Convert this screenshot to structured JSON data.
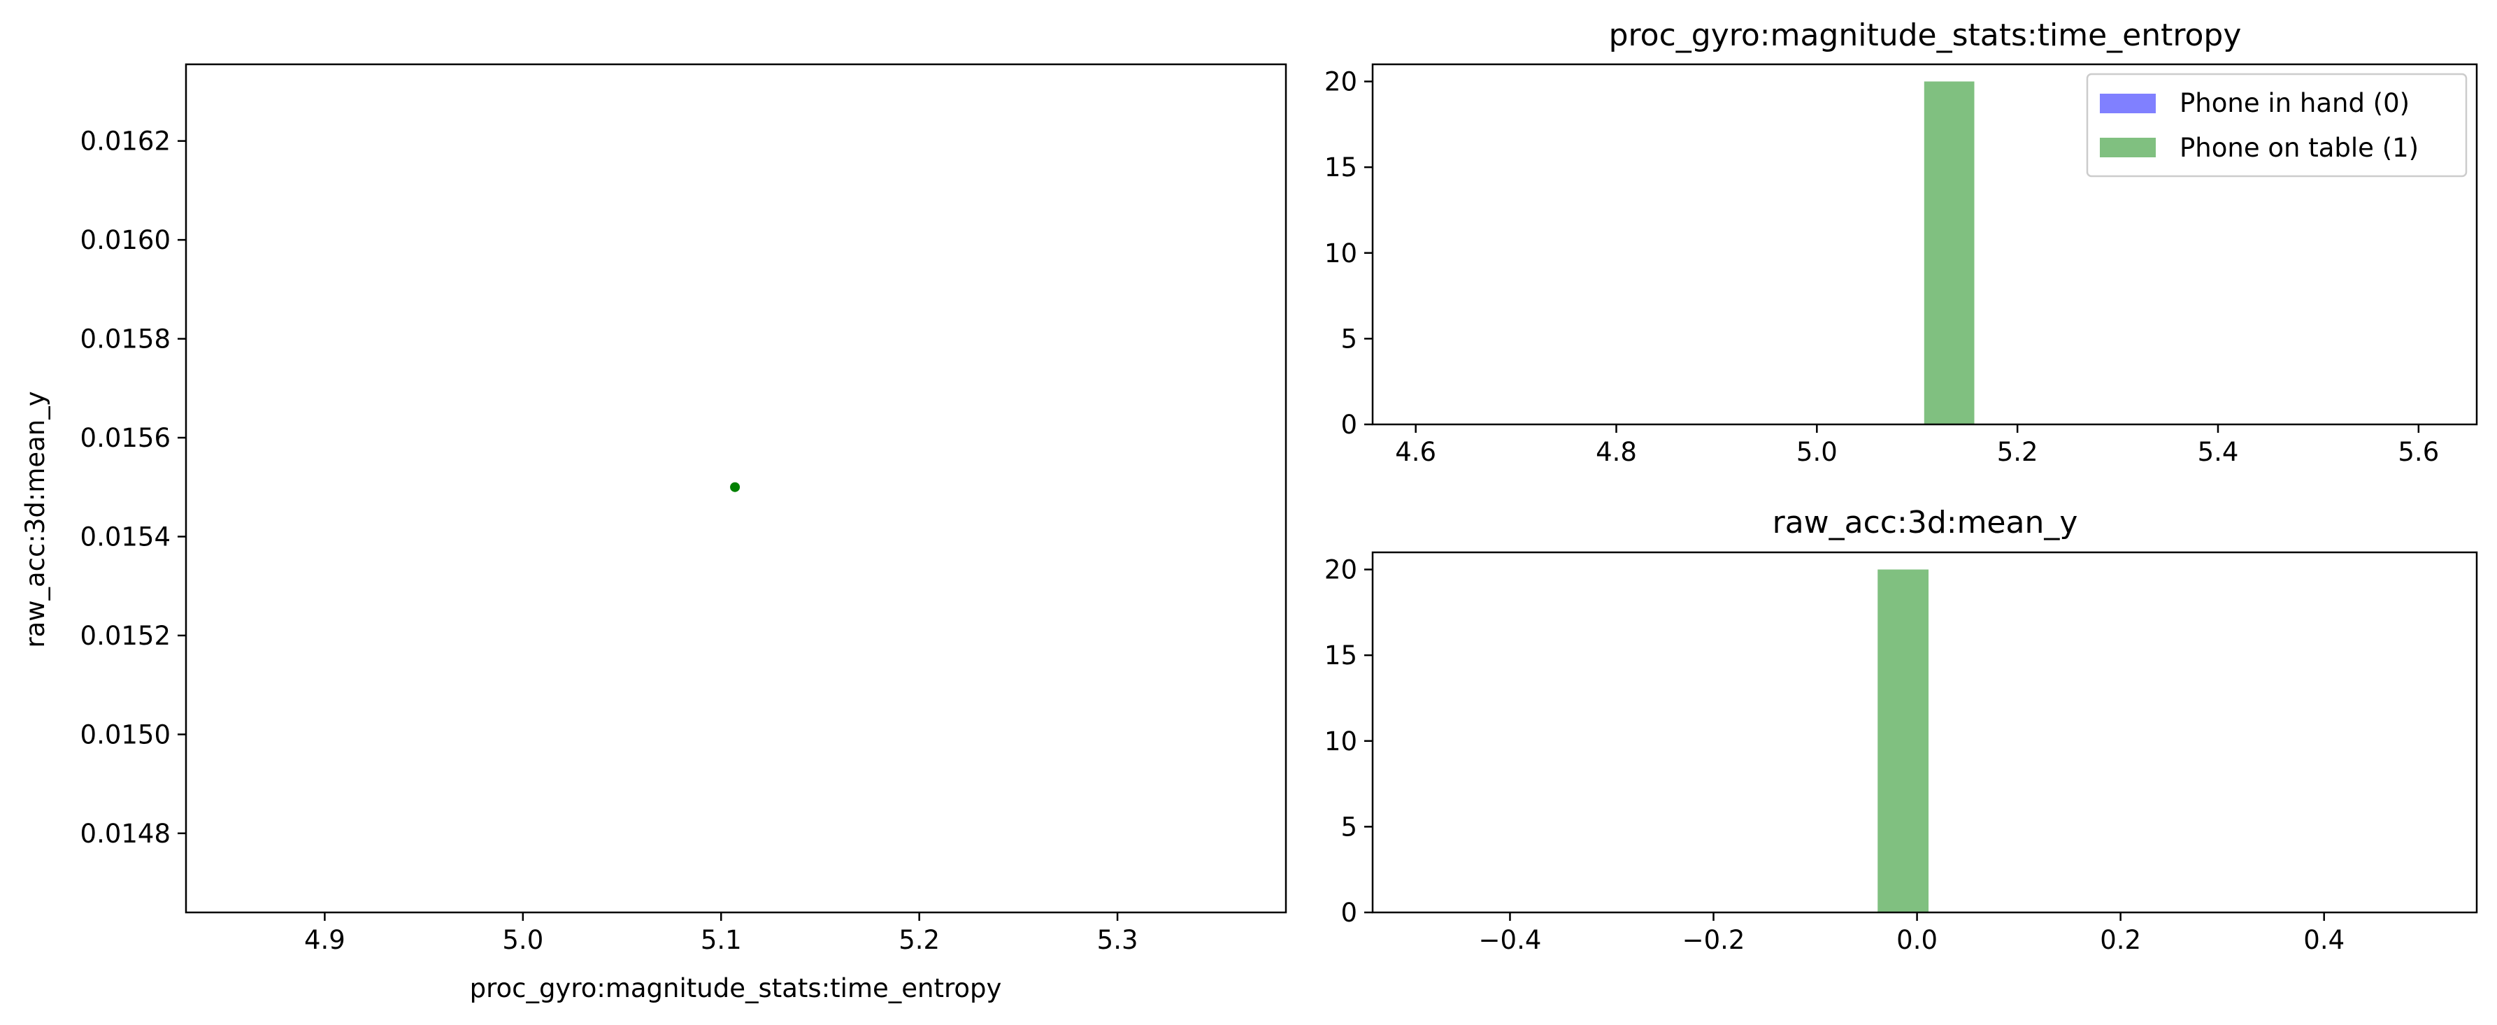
{
  "chart_data": [
    {
      "type": "scatter",
      "title": "",
      "xlabel": "proc_gyro:magnitude_stats:time_entropy",
      "ylabel": "raw_acc:3d:mean_y",
      "xlim": [
        4.83,
        5.385
      ],
      "ylim": [
        0.01464,
        0.016355
      ],
      "xticks": [
        4.9,
        5.0,
        5.1,
        5.2,
        5.3
      ],
      "xtick_labels": [
        "4.9",
        "5.0",
        "5.1",
        "5.2",
        "5.3"
      ],
      "yticks": [
        0.0148,
        0.015,
        0.0152,
        0.0154,
        0.0156,
        0.0158,
        0.016,
        0.0162
      ],
      "ytick_labels": [
        "0.0148",
        "0.0150",
        "0.0152",
        "0.0154",
        "0.0156",
        "0.0158",
        "0.0160",
        "0.0162"
      ],
      "series": [
        {
          "color": "#008000",
          "points": [
            [
              5.107,
              0.0155
            ]
          ]
        }
      ],
      "grid": false
    },
    {
      "type": "bar",
      "title": "proc_gyro:magnitude_stats:time_entropy",
      "xlabel": "",
      "ylabel": "",
      "xlim": [
        4.557,
        5.658
      ],
      "ylim": [
        0,
        21
      ],
      "xticks": [
        4.6,
        4.8,
        5.0,
        5.2,
        5.4,
        5.6
      ],
      "xtick_labels": [
        "4.6",
        "4.8",
        "5.0",
        "5.2",
        "5.4",
        "5.6"
      ],
      "yticks": [
        0,
        5,
        10,
        15,
        20
      ],
      "ytick_labels": [
        "0",
        "5",
        "10",
        "15",
        "20"
      ],
      "series": [
        {
          "name": "Phone in hand (0)",
          "color": "#8080ff",
          "bins": []
        },
        {
          "name": "Phone on table (1)",
          "color": "#80c080",
          "bins": [
            {
              "x0": 5.107,
              "x1": 5.157,
              "count": 20
            }
          ]
        }
      ],
      "legend": "top-right",
      "grid": false
    },
    {
      "type": "bar",
      "title": "raw_acc:3d:mean_y",
      "xlabel": "",
      "ylabel": "",
      "xlim": [
        -0.535,
        0.55
      ],
      "ylim": [
        0,
        21
      ],
      "xticks": [
        -0.4,
        -0.2,
        0.0,
        0.2,
        0.4
      ],
      "xtick_labels": [
        "−0.4",
        "−0.2",
        "0.0",
        "0.2",
        "0.4"
      ],
      "yticks": [
        0,
        5,
        10,
        15,
        20
      ],
      "ytick_labels": [
        "0",
        "5",
        "10",
        "15",
        "20"
      ],
      "series": [
        {
          "name": "Phone on table (1)",
          "color": "#80c080",
          "bins": [
            {
              "x0": -0.0387,
              "x1": 0.0113,
              "count": 20
            }
          ]
        }
      ],
      "grid": false
    }
  ]
}
